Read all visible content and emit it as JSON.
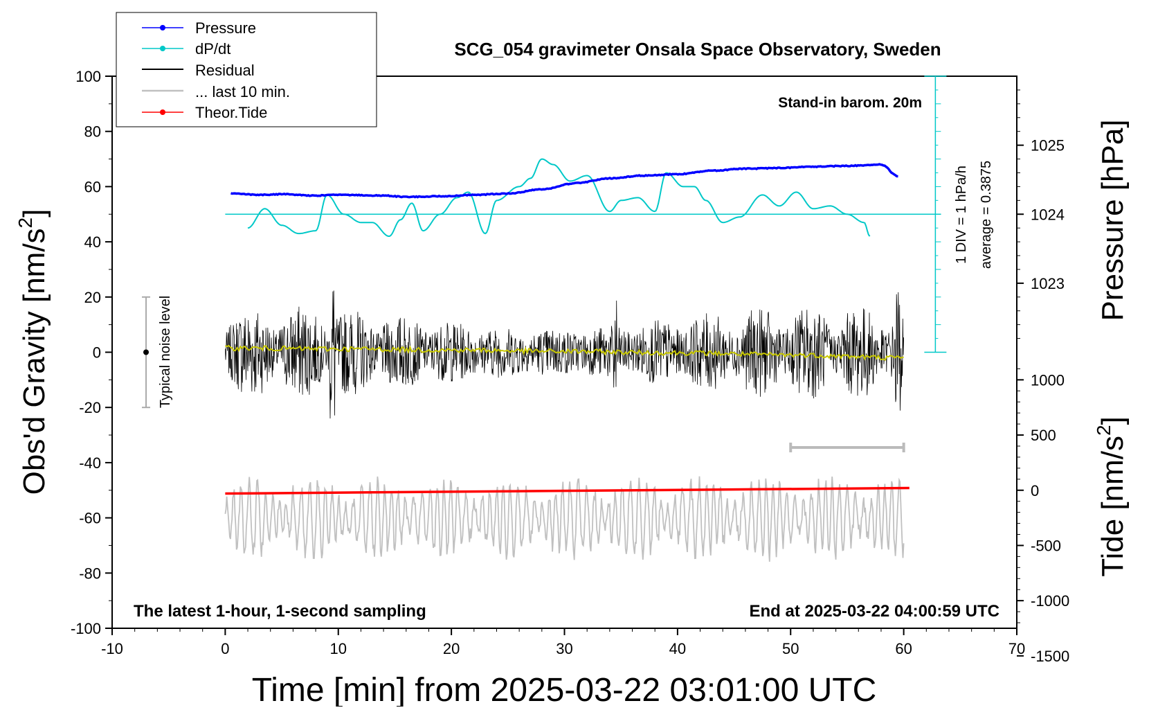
{
  "chart_data": {
    "type": "line",
    "title": "SCG_054 gravimeter Onsala Space Observatory, Sweden",
    "xlabel": "Time [min] from 2025-03-22 03:01:00 UTC",
    "ylabel_left": "Obs'd Gravity [nm/s",
    "ylabel_left_sup": "2",
    "ylabel_left_end": "]",
    "ylabel_right_pressure": "Pressure [hPa]",
    "ylabel_right_tide": "Tide [nm/s",
    "ylabel_right_tide_sup": "2",
    "ylabel_right_tide_end": "]",
    "xlim": [
      -10,
      70
    ],
    "ylim": [
      -100,
      100
    ],
    "pressure_lim": [
      1022,
      1026
    ],
    "tide_lim": [
      -1500,
      1500
    ],
    "x_ticks": [
      "-10",
      "0",
      "10",
      "20",
      "30",
      "40",
      "50",
      "60",
      "70"
    ],
    "y_ticks": [
      "100",
      "80",
      "60",
      "40",
      "20",
      "0",
      "-20",
      "-40",
      "-60",
      "-80",
      "-100"
    ],
    "pressure_ticks": [
      "1025",
      "1024",
      "1023"
    ],
    "tide_ticks": [
      "1000",
      "500",
      "0",
      "-500",
      "-1000",
      "-1500"
    ],
    "legend": [
      "Pressure",
      "dP/dt",
      "Residual",
      "... last 10 min.",
      "Theor.Tide"
    ],
    "annotations": {
      "station": "Stand-in barom. 20m",
      "dpdt_scale": "1 DIV = 1 hPa/h",
      "dpdt_average": "average = 0.3875",
      "noise": "Typical noise level",
      "sampling": "The latest 1-hour, 1-second sampling",
      "end_time": "End at 2025-03-22 04:00:59 UTC"
    },
    "noise_bar": {
      "x": -7,
      "y_low": -20,
      "y_high": 20
    },
    "last10_bar": {
      "x_start": 50,
      "x_end": 60
    },
    "pressure_series": {
      "name": "Pressure",
      "units": "hPa",
      "x": [
        0.5,
        3,
        5,
        8,
        10,
        14,
        16,
        19,
        22,
        25,
        28,
        31,
        34,
        37,
        40,
        43,
        46,
        49,
        52,
        55,
        57,
        58,
        59.5
      ],
      "values": [
        1024.3,
        1024.28,
        1024.29,
        1024.27,
        1024.28,
        1024.27,
        1024.25,
        1024.26,
        1024.28,
        1024.3,
        1024.36,
        1024.45,
        1024.52,
        1024.56,
        1024.58,
        1024.63,
        1024.66,
        1024.67,
        1024.69,
        1024.7,
        1024.71,
        1024.72,
        1024.55
      ]
    },
    "dpdt_series": {
      "name": "dP/dt",
      "baseline_value": 50,
      "x": [
        2,
        3.5,
        5,
        6.5,
        8,
        9,
        10.5,
        12,
        13,
        14.5,
        15.5,
        16.5,
        17.5,
        19,
        20.5,
        21.5,
        23,
        24,
        26,
        27,
        28,
        29,
        30.5,
        32,
        34,
        35,
        36.5,
        38,
        39,
        40.5,
        41.5,
        42.5,
        44,
        45.5,
        47.5,
        49,
        50.5,
        52,
        53.5,
        55,
        56.5,
        57
      ],
      "values": [
        45,
        52,
        46,
        43,
        44,
        57,
        50,
        47,
        47,
        42,
        48,
        54,
        44,
        50,
        56,
        58,
        43,
        55,
        60,
        63,
        70,
        68,
        62,
        64,
        51,
        55,
        56,
        51,
        65,
        60,
        60,
        55,
        47,
        49,
        57,
        53,
        58,
        52,
        53,
        50,
        47,
        42
      ]
    },
    "residual_series": {
      "name": "Residual",
      "x_range": [
        0,
        60
      ],
      "envelope_extremes": [
        {
          "x": 9.5,
          "max": 31,
          "min": -31
        },
        {
          "x": 34.5,
          "max": 23,
          "min": -26
        },
        {
          "x": 59.5,
          "max": 25,
          "min": -27
        }
      ],
      "typical_amplitude": 12
    },
    "running_mean_series": {
      "name": "smoothed residual",
      "x": [
        0,
        10,
        20,
        30,
        40,
        50,
        60
      ],
      "values": [
        1.5,
        1.2,
        0.8,
        0.3,
        -0.2,
        -1,
        -2
      ]
    },
    "last10_series": {
      "name": "... last 10 min.",
      "x_range": [
        0,
        60
      ],
      "center": -60,
      "typical_amplitude": 12,
      "max": -35,
      "min": -87
    },
    "tide_series": {
      "name": "Theor.Tide",
      "units": "nm/s2",
      "x": [
        0,
        60.5
      ],
      "values": [
        -30,
        20
      ]
    },
    "colors": {
      "pressure": "#0000ff",
      "dpdt": "#00c8c8",
      "residual": "#000000",
      "last10": "#c0c0c0",
      "tide": "#ff0000",
      "mean": "#c8c800"
    }
  }
}
